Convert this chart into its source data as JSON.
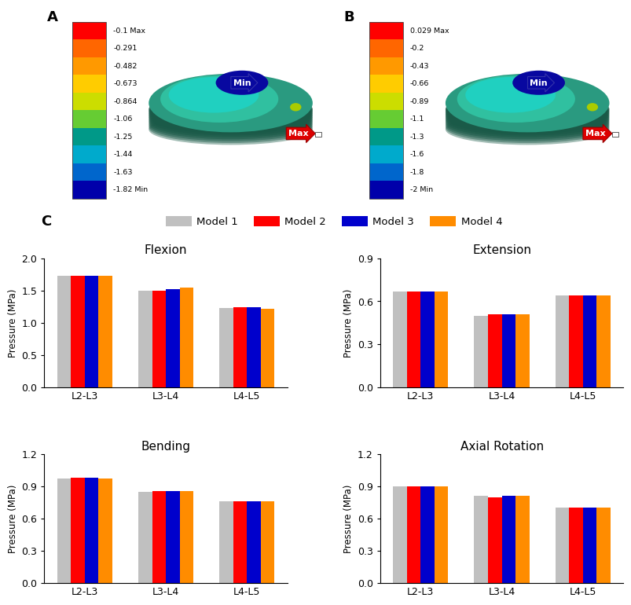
{
  "panel_A_colorbar_labels": [
    "-0.1 Max",
    "-0.291",
    "-0.482",
    "-0.673",
    "-0.864",
    "-1.06",
    "-1.25",
    "-1.44",
    "-1.63",
    "-1.82 Min"
  ],
  "panel_B_colorbar_labels": [
    "0.029 Max",
    "-0.2",
    "-0.43",
    "-0.66",
    "-0.89",
    "-1.1",
    "-1.3",
    "-1.6",
    "-1.8",
    "-2 Min"
  ],
  "panel_A_label": "A",
  "panel_B_label": "B",
  "panel_C_label": "C",
  "legend_labels": [
    "Model 1",
    "Model 2",
    "Model 3",
    "Model 4"
  ],
  "bar_colors": [
    "#c0c0c0",
    "#ff0000",
    "#0000cc",
    "#ff8c00"
  ],
  "categories": [
    "L2-L3",
    "L3-L4",
    "L4-L5"
  ],
  "subplot_titles": [
    "Flexion",
    "Extension",
    "Bending",
    "Axial Rotation"
  ],
  "flexion_data": {
    "L2-L3": [
      1.73,
      1.73,
      1.73,
      1.73
    ],
    "L3-L4": [
      1.49,
      1.5,
      1.52,
      1.55
    ],
    "L4-L5": [
      1.23,
      1.24,
      1.24,
      1.22
    ]
  },
  "extension_data": {
    "L2-L3": [
      0.67,
      0.67,
      0.67,
      0.67
    ],
    "L3-L4": [
      0.5,
      0.51,
      0.51,
      0.51
    ],
    "L4-L5": [
      0.64,
      0.64,
      0.64,
      0.64
    ]
  },
  "bending_data": {
    "L2-L3": [
      0.97,
      0.98,
      0.98,
      0.97
    ],
    "L3-L4": [
      0.85,
      0.86,
      0.86,
      0.86
    ],
    "L4-L5": [
      0.76,
      0.76,
      0.76,
      0.76
    ]
  },
  "axial_data": {
    "L2-L3": [
      0.9,
      0.9,
      0.9,
      0.9
    ],
    "L3-L4": [
      0.81,
      0.8,
      0.81,
      0.81
    ],
    "L4-L5": [
      0.7,
      0.7,
      0.7,
      0.7
    ]
  },
  "flexion_ylim": [
    0,
    2.0
  ],
  "extension_ylim": [
    0,
    0.9
  ],
  "bending_ylim": [
    0,
    1.2
  ],
  "axial_ylim": [
    0,
    1.2
  ],
  "flexion_yticks": [
    0.0,
    0.5,
    1.0,
    1.5,
    2.0
  ],
  "extension_yticks": [
    0.0,
    0.3,
    0.6,
    0.9
  ],
  "bending_yticks": [
    0.0,
    0.3,
    0.6,
    0.9,
    1.2
  ],
  "axial_yticks": [
    0.0,
    0.3,
    0.6,
    0.9,
    1.2
  ],
  "ylabel": "Pressure (MPa)",
  "background_color": "#ffffff",
  "cbar_colors_A": [
    "#ff0000",
    "#ff6600",
    "#ff9900",
    "#ffcc00",
    "#ccdd00",
    "#66cc33",
    "#009988",
    "#00aacc",
    "#0066cc",
    "#0000aa"
  ],
  "cbar_colors_B": [
    "#ff0000",
    "#ff6600",
    "#ff9900",
    "#ffcc00",
    "#ccdd00",
    "#66cc33",
    "#009988",
    "#00aacc",
    "#0066cc",
    "#0000aa"
  ]
}
